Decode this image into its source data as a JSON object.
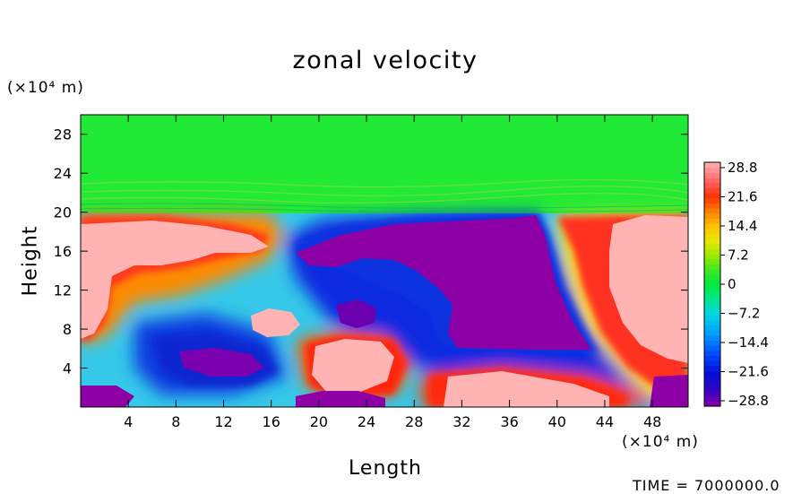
{
  "chart_data": {
    "type": "heatmap",
    "title": "zonal velocity",
    "xlabel": "Length",
    "ylabel": "Height",
    "x_unit": "(×10⁴ m)",
    "y_unit": "(×10⁴ m)",
    "xlim": [
      0,
      51
    ],
    "ylim": [
      0,
      30
    ],
    "x_ticks": [
      "4",
      "8",
      "12",
      "16",
      "20",
      "24",
      "28",
      "32",
      "36",
      "40",
      "44",
      "48"
    ],
    "y_ticks": [
      "4",
      "8",
      "12",
      "16",
      "20",
      "24",
      "28"
    ],
    "colorbar": {
      "min": -28.8,
      "max": 28.8,
      "labels": [
        "28.8",
        "21.6",
        "14.4",
        "7.2",
        "0",
        "−7.2",
        "−14.4",
        "−21.6",
        "−28.8"
      ]
    },
    "fields": [
      {
        "name": "upper-layer",
        "value": -2,
        "x": [
          0,
          51
        ],
        "y": [
          20.5,
          30
        ]
      },
      {
        "name": "left-positive-jet",
        "value": 28.8,
        "x": [
          0,
          15
        ],
        "y": [
          6,
          19.5
        ]
      },
      {
        "name": "central-negative-core",
        "value": -28.8,
        "x": [
          18,
          41
        ],
        "y": [
          6,
          19.5
        ]
      },
      {
        "name": "right-positive-jet",
        "value": 28.8,
        "x": [
          44,
          51
        ],
        "y": [
          3,
          19.5
        ]
      },
      {
        "name": "lower-left-negative",
        "value": -26,
        "x": [
          6,
          17
        ],
        "y": [
          2,
          7
        ]
      },
      {
        "name": "lower-center-positive",
        "value": 28.8,
        "x": [
          19,
          27
        ],
        "y": [
          2,
          7
        ]
      },
      {
        "name": "mid-positive-blob",
        "value": 25,
        "x": [
          14,
          18
        ],
        "y": [
          7,
          10.5
        ]
      },
      {
        "name": "bottom-right-positive",
        "value": 28.8,
        "x": [
          29,
          44
        ],
        "y": [
          0,
          4
        ]
      },
      {
        "name": "bottom-left-negative",
        "value": -28.8,
        "x": [
          0,
          9
        ],
        "y": [
          0,
          2.5
        ]
      },
      {
        "name": "bottom-right-negative",
        "value": -28.8,
        "x": [
          47,
          51
        ],
        "y": [
          0,
          3
        ]
      }
    ]
  },
  "footer": {
    "time_text": "TIME = 7000000.0"
  }
}
